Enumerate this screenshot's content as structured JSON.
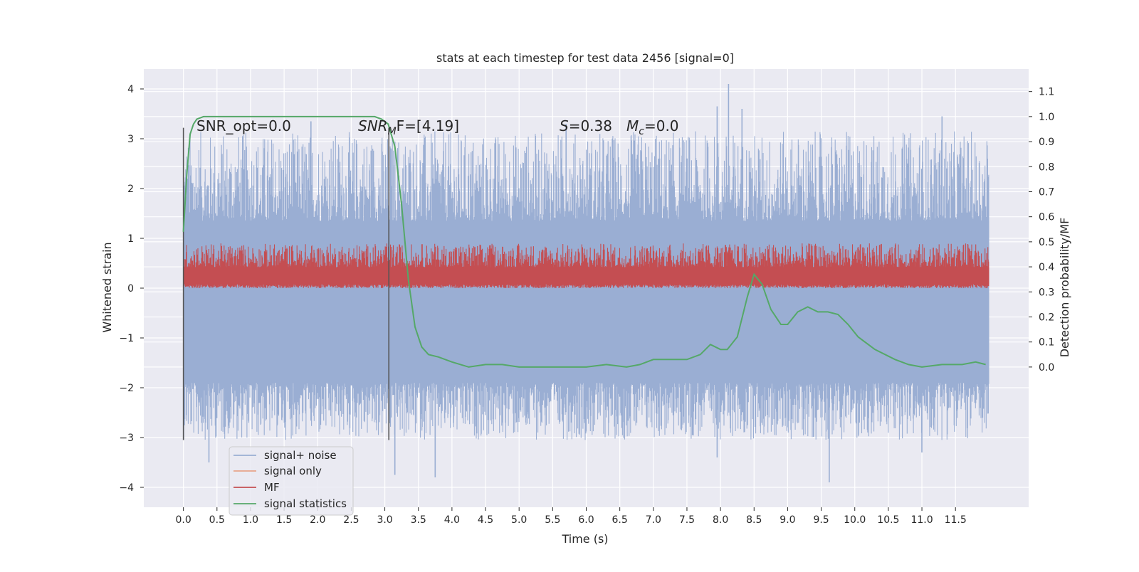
{
  "chart_data": {
    "type": "line",
    "title": "stats at each timestep for test data 2456 [signal=0]",
    "xlabel": "Time (s)",
    "ylabel": "Whitened strain",
    "ylabel_right": "Detection probability/MF",
    "xlim": [
      -0.59,
      12.59
    ],
    "ylim": [
      -4.4,
      4.4
    ],
    "ylim_right": [
      -0.56,
      1.19
    ],
    "x_ticks": [
      "0.0",
      "0.5",
      "1.0",
      "1.5",
      "2.0",
      "2.5",
      "3.0",
      "3.5",
      "4.0",
      "4.5",
      "5.0",
      "5.5",
      "6.0",
      "6.5",
      "7.0",
      "7.5",
      "8.0",
      "8.5",
      "9.0",
      "9.5",
      "10.0",
      "10.5",
      "11.0",
      "11.5"
    ],
    "y_ticks": [
      "4",
      "3",
      "2",
      "1",
      "0",
      "−1",
      "−2",
      "−3",
      "−4"
    ],
    "y_ticks_right": [
      "1.1",
      "1.0",
      "0.9",
      "0.8",
      "0.7",
      "0.6",
      "0.5",
      "0.4",
      "0.3",
      "0.2",
      "0.1",
      "0.0"
    ],
    "grid": true,
    "legend_position": "lower-left",
    "annotations": {
      "snr_opt": "SNR_opt=0.0",
      "snr_mf_label": "SNR",
      "snr_mf_sub": "M",
      "snr_mf_rest": "F=[4.19]",
      "s_label": "S",
      "s_value": "=0.38",
      "mc_label": "M",
      "mc_sub": "c",
      "mc_value": "=0.0"
    },
    "vertical_lines": [
      0.0,
      3.06
    ],
    "series": [
      {
        "name": "signal+ noise",
        "color": "#9aaed3",
        "band": {
          "x_start": 0.0,
          "x_end": 12.0,
          "core_low": -1.9,
          "core_high": 1.35,
          "max": 4.1,
          "min": -3.9
        },
        "peaks": [
          {
            "x": 8.12,
            "y": 4.1
          },
          {
            "x": 7.95,
            "y": 3.65
          },
          {
            "x": 8.32,
            "y": 3.6
          },
          {
            "x": 11.3,
            "y": 3.45
          },
          {
            "x": 1.9,
            "y": 3.35
          },
          {
            "x": 5.7,
            "y": 3.3
          },
          {
            "x": 9.62,
            "y": -3.9
          },
          {
            "x": 3.75,
            "y": -3.8
          },
          {
            "x": 3.15,
            "y": -3.75
          },
          {
            "x": 0.38,
            "y": -3.5
          },
          {
            "x": 7.95,
            "y": -3.4
          },
          {
            "x": 11.0,
            "y": -3.3
          }
        ]
      },
      {
        "name": "signal only",
        "color": "#e8a48a",
        "values": []
      },
      {
        "name": "MF",
        "color": "#c44e52",
        "band": {
          "x_start": 0.0,
          "x_end": 12.0,
          "base": 0.0,
          "core_high": 0.45,
          "max": 0.9
        }
      },
      {
        "name": "signal statistics",
        "color": "#55a868",
        "axis": "right",
        "x": [
          0.0,
          0.05,
          0.1,
          0.15,
          0.2,
          0.3,
          0.5,
          1.0,
          2.0,
          2.6,
          2.85,
          2.95,
          3.05,
          3.15,
          3.25,
          3.35,
          3.45,
          3.55,
          3.65,
          3.8,
          4.0,
          4.25,
          4.5,
          4.75,
          5.0,
          5.5,
          6.0,
          6.3,
          6.6,
          6.8,
          7.0,
          7.2,
          7.5,
          7.7,
          7.85,
          8.0,
          8.1,
          8.25,
          8.4,
          8.5,
          8.62,
          8.75,
          8.9,
          9.0,
          9.15,
          9.3,
          9.45,
          9.6,
          9.75,
          9.9,
          10.05,
          10.3,
          10.6,
          10.8,
          11.0,
          11.3,
          11.6,
          11.8,
          11.95
        ],
        "values": [
          0.54,
          0.77,
          0.93,
          0.97,
          0.99,
          1.0,
          1.0,
          1.0,
          1.0,
          1.0,
          1.0,
          0.99,
          0.97,
          0.88,
          0.65,
          0.35,
          0.16,
          0.08,
          0.05,
          0.04,
          0.02,
          0.0,
          0.01,
          0.01,
          0.0,
          0.0,
          0.0,
          0.01,
          0.0,
          0.01,
          0.03,
          0.03,
          0.03,
          0.05,
          0.09,
          0.07,
          0.07,
          0.12,
          0.28,
          0.37,
          0.33,
          0.23,
          0.17,
          0.17,
          0.22,
          0.24,
          0.22,
          0.22,
          0.21,
          0.17,
          0.12,
          0.07,
          0.03,
          0.01,
          0.0,
          0.01,
          0.01,
          0.02,
          0.01
        ]
      }
    ]
  }
}
